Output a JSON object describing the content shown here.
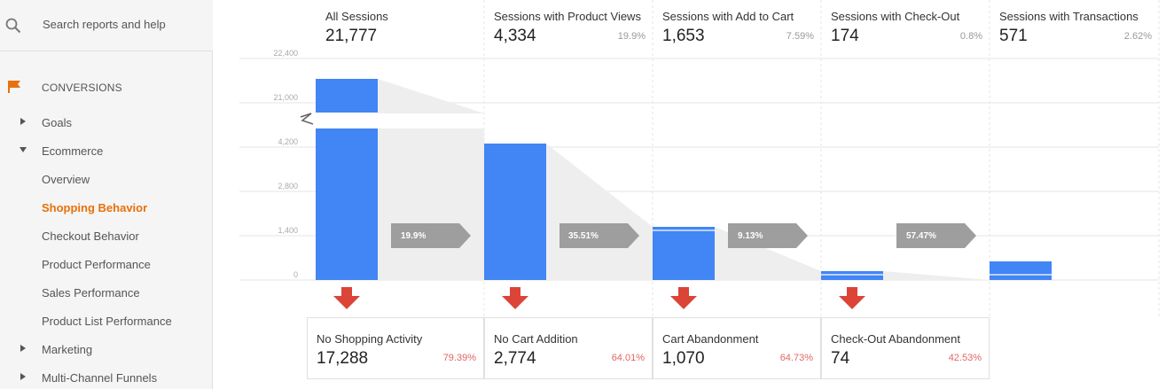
{
  "sidebar": {
    "search_placeholder": "Search reports and help",
    "section": "CONVERSIONS",
    "items": [
      {
        "label": "Goals"
      },
      {
        "label": "Ecommerce"
      },
      {
        "label": "Overview"
      },
      {
        "label": "Shopping Behavior"
      },
      {
        "label": "Checkout Behavior"
      },
      {
        "label": "Product Performance"
      },
      {
        "label": "Sales Performance"
      },
      {
        "label": "Product List Performance"
      },
      {
        "label": "Marketing"
      },
      {
        "label": "Multi-Channel Funnels"
      }
    ]
  },
  "funnel": {
    "y_ticks": [
      "22,400",
      "21,000",
      "4,200",
      "2,800",
      "1,400",
      "0"
    ],
    "stages": [
      {
        "name": "All Sessions",
        "value": "21,777",
        "pct": ""
      },
      {
        "name": "Sessions with Product Views",
        "value": "4,334",
        "pct": "19.9%"
      },
      {
        "name": "Sessions with Add to Cart",
        "value": "1,653",
        "pct": "7.59%"
      },
      {
        "name": "Sessions with Check-Out",
        "value": "174",
        "pct": "0.8%"
      },
      {
        "name": "Sessions with Transactions",
        "value": "571",
        "pct": "2.62%"
      }
    ],
    "conversion_rates": [
      "19.9%",
      "35.51%",
      "9.13%",
      "57.47%"
    ],
    "dropoffs": [
      {
        "name": "No Shopping Activity",
        "value": "17,288",
        "pct": "79.39%"
      },
      {
        "name": "No Cart Addition",
        "value": "2,774",
        "pct": "64.01%"
      },
      {
        "name": "Cart Abandonment",
        "value": "1,070",
        "pct": "64.73%"
      },
      {
        "name": "Check-Out Abandonment",
        "value": "74",
        "pct": "42.53%"
      }
    ],
    "colors": {
      "bar": "#4285f4",
      "drop_arrow": "#db4437",
      "conv_arrow": "#9e9e9e"
    }
  }
}
